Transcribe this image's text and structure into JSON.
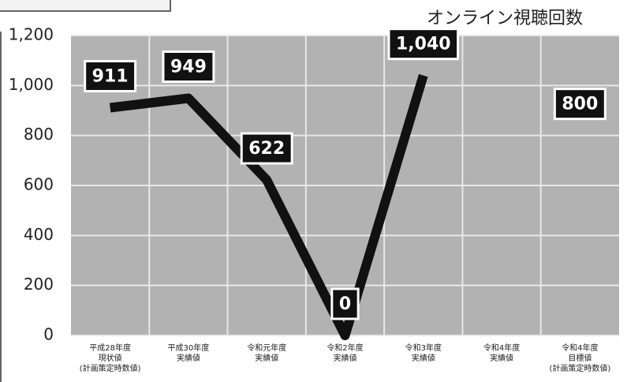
{
  "chart_data": {
    "type": "line",
    "title": "オンライン視聴回数",
    "categories": [
      "平成28年度\n現状値\n(計画策定時数値)",
      "平成30年度\n実績値",
      "令和元年度\n実績値",
      "令和2年度\n実績値",
      "令和3年度\n実績値",
      "令和4年度\n実績値",
      "令和4年度\n目標値\n(計画策定時数値)"
    ],
    "series": [
      {
        "color": "#111111",
        "values": [
          911,
          949,
          622,
          0,
          1040,
          null,
          800
        ],
        "value_labels": [
          "911",
          "949",
          "622",
          "0",
          "1,040",
          null,
          "800"
        ]
      }
    ],
    "ylim": [
      0,
      1200
    ],
    "yticks": [
      0,
      200,
      400,
      600,
      800,
      {
        "value": 1000,
        "label": "1,000"
      },
      {
        "value": 1200,
        "label": "1,200"
      }
    ],
    "grid": true
  }
}
